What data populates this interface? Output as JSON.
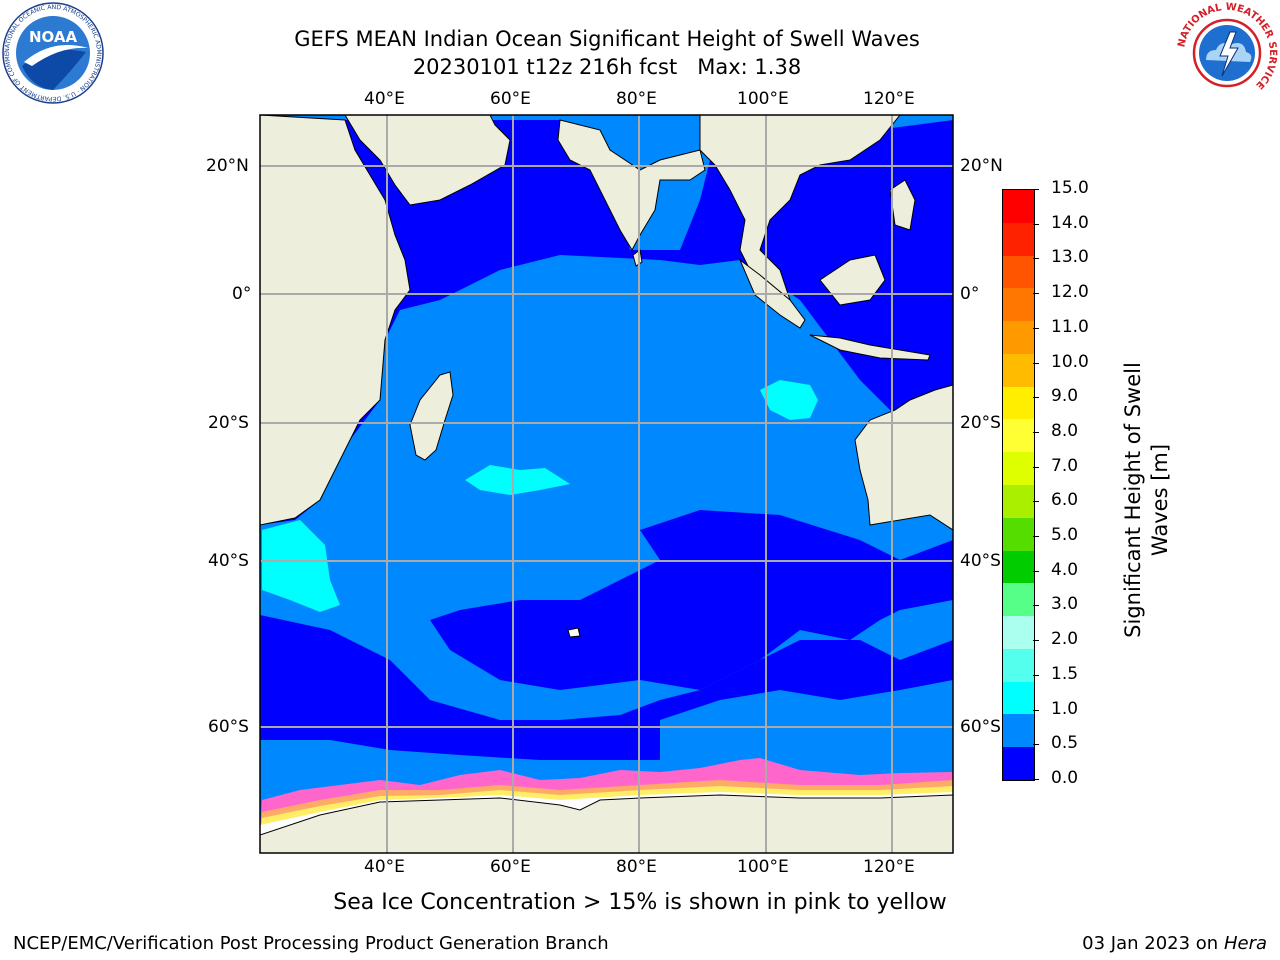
{
  "header": {
    "title": "GEFS MEAN Indian Ocean Significant Height of Swell Waves",
    "subtitle": "20230101 t12z 216h fcst",
    "max_label": "Max: 1.38"
  },
  "logos": {
    "left": {
      "text": "NOAA",
      "ring_text": "NATIONAL OCEANIC AND ATMOSPHERIC ADMINISTRATION · U.S. DEPARTMENT OF COMMERCE"
    },
    "right": {
      "ring_text": "NATIONAL WEATHER SERVICE"
    }
  },
  "map": {
    "lon_ticks": [
      "40°E",
      "60°E",
      "80°E",
      "100°E",
      "120°E"
    ],
    "lat_ticks": [
      "20°N",
      "0°",
      "20°S",
      "40°S",
      "60°S"
    ],
    "extent": {
      "lon": [
        20,
        130
      ],
      "lat": [
        -72,
        26
      ]
    },
    "colors": {
      "land": "#eeeedd",
      "ice_white": "#ffffff",
      "ice_pink": "#ff66cc",
      "ice_orange": "#ffaa66",
      "ice_yellow": "#ffee66"
    }
  },
  "colorbar": {
    "label_line1": "Significant Height of Swell",
    "label_line2": "Waves [m]",
    "ticks": [
      "15.0",
      "14.0",
      "13.0",
      "12.0",
      "11.0",
      "10.0",
      "9.0",
      "8.0",
      "7.0",
      "6.0",
      "5.0",
      "4.0",
      "3.0",
      "2.0",
      "1.5",
      "1.0",
      "0.5",
      "0.0"
    ],
    "colors": [
      "#ff0000",
      "#ff2200",
      "#ff5500",
      "#ff7700",
      "#ff9900",
      "#ffbb00",
      "#ffee00",
      "#ffff33",
      "#ddff00",
      "#aaee00",
      "#55dd00",
      "#00cc00",
      "#55ff88",
      "#aaffee",
      "#55ffee",
      "#00ffff",
      "#0088ff",
      "#0000ff"
    ]
  },
  "footer": {
    "caption": "Sea Ice Concentration > 15% is shown in pink to yellow",
    "left": "NCEP/EMC/Verification Post Processing Product Generation Branch",
    "right_prefix": "03 Jan 2023 on ",
    "right_machine": "Hera"
  }
}
